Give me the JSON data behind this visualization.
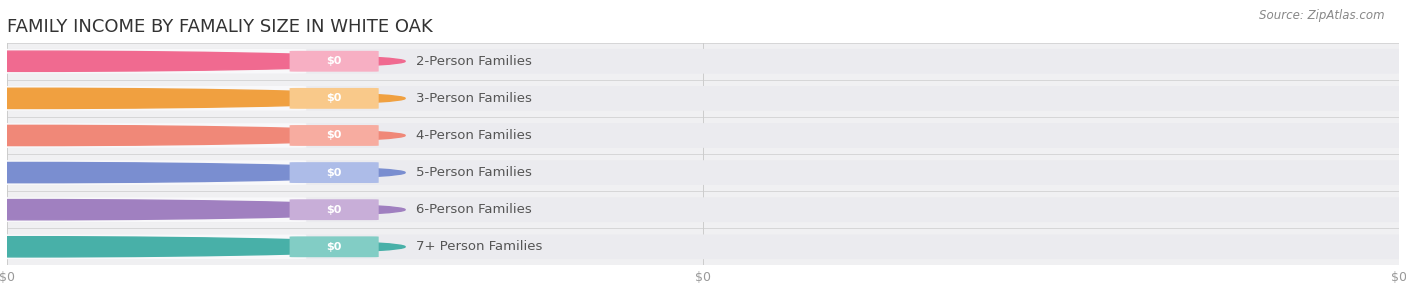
{
  "title": "FAMILY INCOME BY FAMALIY SIZE IN WHITE OAK",
  "source_text": "Source: ZipAtlas.com",
  "categories": [
    "2-Person Families",
    "3-Person Families",
    "4-Person Families",
    "5-Person Families",
    "6-Person Families",
    "7+ Person Families"
  ],
  "values": [
    0,
    0,
    0,
    0,
    0,
    0
  ],
  "bar_colors": [
    "#f7afc3",
    "#f9c98a",
    "#f7aca0",
    "#adbce8",
    "#c8aed8",
    "#82cdc5"
  ],
  "dot_colors": [
    "#f06a90",
    "#f0a040",
    "#f08878",
    "#7a8ed0",
    "#a080c0",
    "#48b0a8"
  ],
  "bg_row_color": "#f0f0f2",
  "bar_bg_color": "#ebebef",
  "label_bg_color": "#f8f8fa",
  "figure_bg": "#ffffff",
  "xtick_labels": [
    "$0",
    "$0",
    "$0"
  ],
  "xtick_positions": [
    0.0,
    0.5,
    1.0
  ],
  "title_fontsize": 13,
  "label_fontsize": 9.5,
  "tick_fontsize": 9,
  "source_fontsize": 8.5
}
